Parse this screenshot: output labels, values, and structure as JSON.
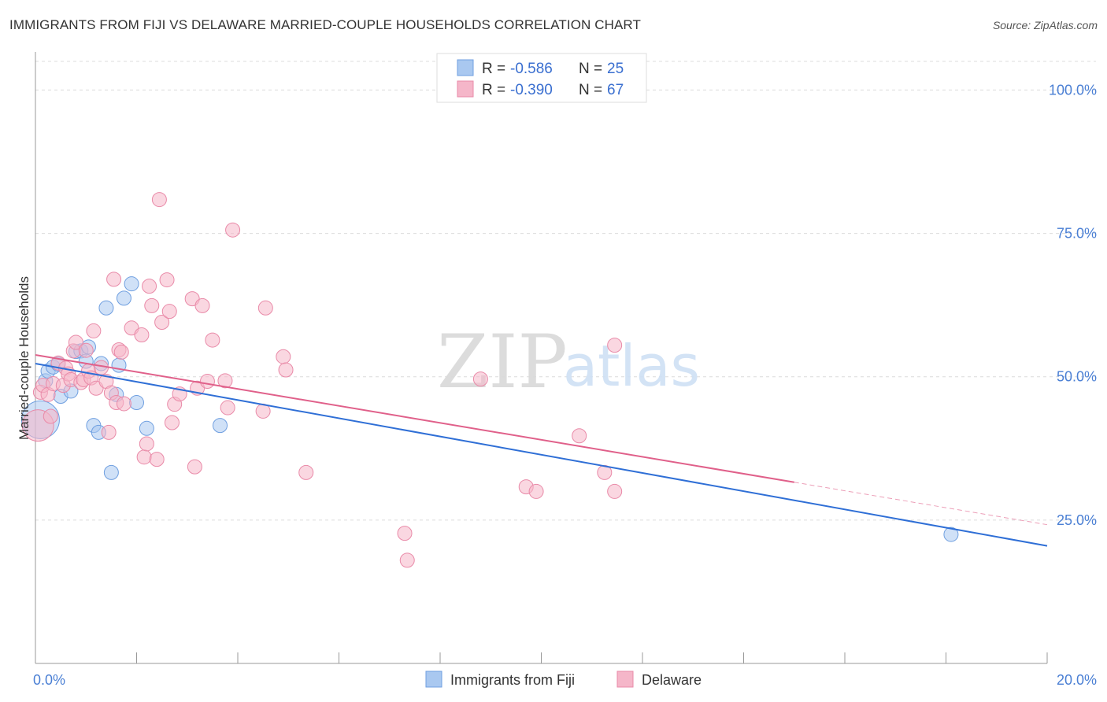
{
  "title": "IMMIGRANTS FROM FIJI VS DELAWARE MARRIED-COUPLE HOUSEHOLDS CORRELATION CHART",
  "source": "Source: ZipAtlas.com",
  "watermark": {
    "zip": "ZIP",
    "atlas": "atlas"
  },
  "legend_top": [
    {
      "r_label": "R = ",
      "r_value": "-0.586",
      "n_label": "N = ",
      "n_value": "25",
      "color": "#a9c8f0"
    },
    {
      "r_label": "R = ",
      "r_value": "-0.390",
      "n_label": "N = ",
      "n_value": "67",
      "color": "#f5b6c9"
    }
  ],
  "legend_bottom": [
    {
      "label": "Immigrants from Fiji",
      "color": "#a9c8f0"
    },
    {
      "label": "Delaware",
      "color": "#f5b6c9"
    }
  ],
  "chart_data": {
    "type": "scatter",
    "title": "IMMIGRANTS FROM FIJI VS DELAWARE MARRIED-COUPLE HOUSEHOLDS CORRELATION CHART",
    "xlabel": "",
    "ylabel": "Married-couple Households",
    "xlim": [
      0,
      20
    ],
    "ylim": [
      0,
      105
    ],
    "x_tick_labels": [
      {
        "value": 0,
        "label": "0.0%"
      },
      {
        "value": 20,
        "label": "20.0%"
      }
    ],
    "y_tick_labels": [
      {
        "value": 25,
        "label": "25.0%"
      },
      {
        "value": 50,
        "label": "50.0%"
      },
      {
        "value": 75,
        "label": "75.0%"
      },
      {
        "value": 100,
        "label": "100.0%"
      }
    ],
    "gridlines_y": [
      25,
      50,
      75,
      100
    ],
    "x_minor_ticks": [
      2,
      4,
      6,
      8,
      10,
      12,
      14,
      16,
      18,
      20
    ],
    "series": [
      {
        "name": "Immigrants from Fiji",
        "color": "#a9c8f0",
        "stroke": "#6f9fe0",
        "trend": {
          "x0": 0,
          "y0": 52.3,
          "x1": 20,
          "y1": 20.5,
          "color": "#2f6fd6"
        },
        "points": [
          [
            0.1,
            42.5,
            24
          ],
          [
            0.2,
            49.3,
            9
          ],
          [
            0.25,
            51.0,
            9
          ],
          [
            0.35,
            51.7,
            9
          ],
          [
            0.45,
            52.2,
            9
          ],
          [
            0.5,
            46.6,
            9
          ],
          [
            0.7,
            47.5,
            9
          ],
          [
            0.8,
            54.4,
            9
          ],
          [
            0.9,
            54.5,
            9
          ],
          [
            1.0,
            52.7,
            9
          ],
          [
            1.05,
            55.2,
            9
          ],
          [
            1.15,
            41.5,
            9
          ],
          [
            1.25,
            40.3,
            9
          ],
          [
            1.3,
            52.3,
            9
          ],
          [
            1.4,
            62.0,
            9
          ],
          [
            1.5,
            33.3,
            9
          ],
          [
            1.6,
            46.9,
            9
          ],
          [
            1.65,
            52.0,
            9
          ],
          [
            1.75,
            63.7,
            9
          ],
          [
            1.9,
            66.2,
            9
          ],
          [
            2.0,
            45.5,
            9
          ],
          [
            2.2,
            41.0,
            9
          ],
          [
            3.65,
            41.5,
            9
          ],
          [
            18.1,
            22.5,
            9
          ]
        ]
      },
      {
        "name": "Delaware",
        "color": "#f5b6c9",
        "stroke": "#e98aa8",
        "trend": {
          "x0": 0,
          "y0": 53.8,
          "x1": 15.0,
          "y1": 31.6,
          "x2": 20,
          "y2": 24.2,
          "color": "#e0608a"
        },
        "points": [
          [
            0.05,
            41.5,
            20
          ],
          [
            0.1,
            47.3,
            9
          ],
          [
            0.15,
            48.5,
            9
          ],
          [
            0.25,
            46.9,
            9
          ],
          [
            0.3,
            43.1,
            9
          ],
          [
            0.35,
            48.8,
            9
          ],
          [
            0.45,
            52.4,
            9
          ],
          [
            0.55,
            48.5,
            9
          ],
          [
            0.6,
            51.5,
            9
          ],
          [
            0.65,
            50.5,
            9
          ],
          [
            0.7,
            49.5,
            9
          ],
          [
            0.75,
            54.5,
            9
          ],
          [
            0.8,
            56.0,
            9
          ],
          [
            0.9,
            49.0,
            9
          ],
          [
            0.95,
            49.5,
            9
          ],
          [
            1.0,
            54.6,
            9
          ],
          [
            1.05,
            51.0,
            9
          ],
          [
            1.1,
            49.8,
            9
          ],
          [
            1.15,
            58.0,
            9
          ],
          [
            1.2,
            48.0,
            9
          ],
          [
            1.3,
            51.6,
            9
          ],
          [
            1.4,
            49.2,
            9
          ],
          [
            1.45,
            40.3,
            9
          ],
          [
            1.5,
            47.2,
            9
          ],
          [
            1.55,
            67.0,
            9
          ],
          [
            1.6,
            45.5,
            9
          ],
          [
            1.65,
            54.7,
            9
          ],
          [
            1.7,
            54.3,
            9
          ],
          [
            1.75,
            45.3,
            9
          ],
          [
            1.9,
            58.5,
            9
          ],
          [
            2.1,
            57.3,
            9
          ],
          [
            2.15,
            36.0,
            9
          ],
          [
            2.2,
            38.3,
            9
          ],
          [
            2.25,
            65.8,
            9
          ],
          [
            2.3,
            62.4,
            9
          ],
          [
            2.4,
            35.6,
            9
          ],
          [
            2.45,
            80.9,
            9
          ],
          [
            2.5,
            59.5,
            9
          ],
          [
            2.6,
            66.9,
            9
          ],
          [
            2.65,
            61.4,
            9
          ],
          [
            2.7,
            42.0,
            9
          ],
          [
            2.75,
            45.2,
            9
          ],
          [
            2.85,
            47.0,
            9
          ],
          [
            3.1,
            63.6,
            9
          ],
          [
            3.15,
            34.3,
            9
          ],
          [
            3.2,
            48.0,
            9
          ],
          [
            3.3,
            62.4,
            9
          ],
          [
            3.4,
            49.2,
            9
          ],
          [
            3.5,
            56.4,
            9
          ],
          [
            3.75,
            49.3,
            9
          ],
          [
            3.8,
            44.6,
            9
          ],
          [
            3.9,
            75.6,
            9
          ],
          [
            4.5,
            44.0,
            9
          ],
          [
            4.55,
            62.0,
            9
          ],
          [
            4.9,
            53.5,
            9
          ],
          [
            4.95,
            51.2,
            9
          ],
          [
            5.35,
            33.3,
            9
          ],
          [
            7.3,
            22.7,
            9
          ],
          [
            7.35,
            18.0,
            9
          ],
          [
            8.8,
            49.6,
            9
          ],
          [
            9.7,
            30.8,
            9
          ],
          [
            9.9,
            30.0,
            9
          ],
          [
            10.75,
            39.7,
            9
          ],
          [
            11.25,
            33.3,
            9
          ],
          [
            11.45,
            30.0,
            9
          ],
          [
            11.45,
            55.5,
            9
          ]
        ]
      }
    ]
  }
}
